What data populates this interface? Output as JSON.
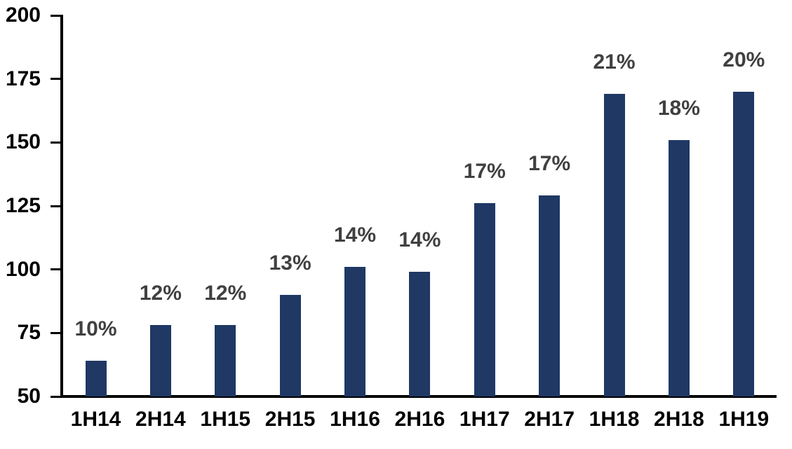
{
  "chart_data": {
    "type": "bar",
    "title": "",
    "xlabel": "",
    "ylabel": "",
    "categories": [
      "1H14",
      "2H14",
      "1H15",
      "2H15",
      "1H16",
      "2H16",
      "1H17",
      "2H17",
      "1H18",
      "2H18",
      "1H19"
    ],
    "values": [
      64,
      78,
      78,
      90,
      101,
      99,
      126,
      129,
      169,
      151,
      170
    ],
    "data_labels": [
      "10%",
      "12%",
      "12%",
      "13%",
      "14%",
      "14%",
      "17%",
      "17%",
      "21%",
      "18%",
      "20%"
    ],
    "ylim": [
      50,
      200
    ],
    "yticks": [
      50,
      75,
      100,
      125,
      150,
      175,
      200
    ],
    "grid": false,
    "legend": "none",
    "colors": {
      "bar": "#1F3864",
      "data_label": "#404040",
      "axis": "#000000",
      "tick_label": "#000000",
      "background": "#ffffff"
    }
  }
}
